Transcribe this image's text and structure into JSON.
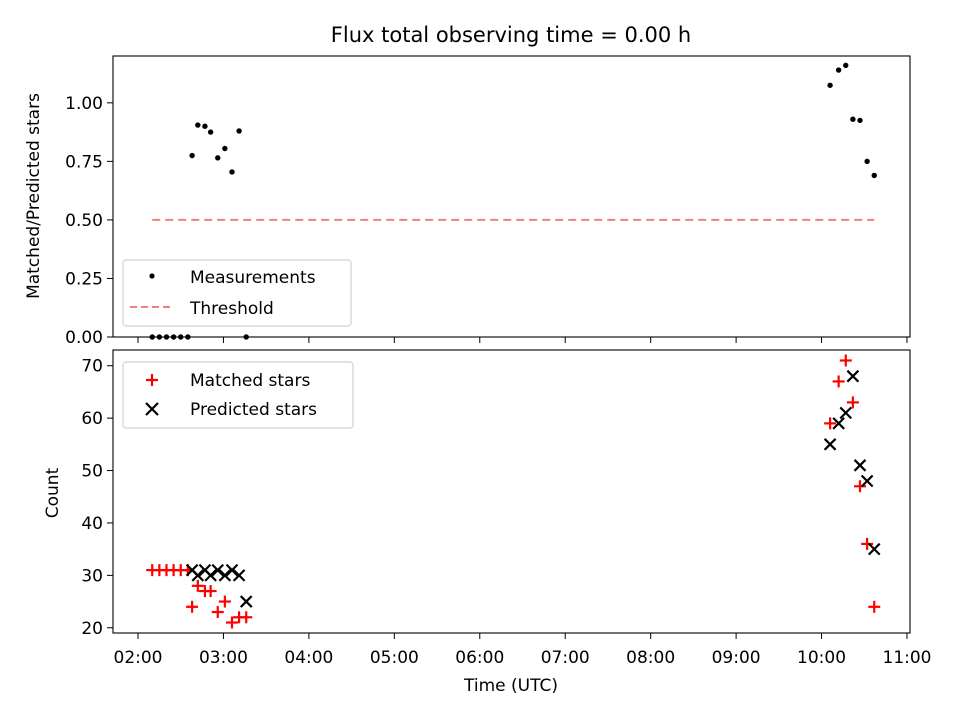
{
  "chart_data": [
    {
      "type": "scatter",
      "title": "Flux total observing time = 0.00 h",
      "ylabel": "Matched/Predicted stars",
      "xlim": [
        "02:00",
        "11:00"
      ],
      "ylim": [
        0,
        1.2
      ],
      "yticks": [
        "0.00",
        "0.25",
        "0.50",
        "0.75",
        "1.00"
      ],
      "legend_position": "lower-left",
      "series": [
        {
          "name": "Measurements",
          "kind": "dot",
          "color": "#000000",
          "points": [
            [
              "02:10",
              0.0
            ],
            [
              "02:15",
              0.0
            ],
            [
              "02:20",
              0.0
            ],
            [
              "02:25",
              0.0
            ],
            [
              "02:30",
              0.0
            ],
            [
              "02:35",
              0.0
            ],
            [
              "02:38",
              0.775
            ],
            [
              "02:42",
              0.905
            ],
            [
              "02:47",
              0.9
            ],
            [
              "02:51",
              0.875
            ],
            [
              "02:56",
              0.765
            ],
            [
              "03:01",
              0.805
            ],
            [
              "03:06",
              0.705
            ],
            [
              "03:11",
              0.88
            ],
            [
              "03:16",
              0.0
            ],
            [
              "10:06",
              1.075
            ],
            [
              "10:12",
              1.14
            ],
            [
              "10:17",
              1.16
            ],
            [
              "10:22",
              0.93
            ],
            [
              "10:27",
              0.925
            ],
            [
              "10:32",
              0.75
            ],
            [
              "10:37",
              0.69
            ]
          ]
        },
        {
          "name": "Threshold",
          "kind": "dashed-line",
          "color": "#f08080",
          "points": [
            [
              "02:10",
              0.5
            ],
            [
              "10:37",
              0.5
            ]
          ]
        }
      ]
    },
    {
      "type": "scatter",
      "xlabel": "Time (UTC)",
      "ylabel": "Count",
      "xlim": [
        "02:00",
        "11:00"
      ],
      "ylim": [
        19,
        73
      ],
      "xticks": [
        "02:00",
        "03:00",
        "04:00",
        "05:00",
        "06:00",
        "07:00",
        "08:00",
        "09:00",
        "10:00",
        "11:00"
      ],
      "yticks": [
        "20",
        "30",
        "40",
        "50",
        "60",
        "70"
      ],
      "legend_position": "upper-left",
      "series": [
        {
          "name": "Matched stars",
          "kind": "plus",
          "color": "#ff0000",
          "points": [
            [
              "02:10",
              31
            ],
            [
              "02:15",
              31
            ],
            [
              "02:20",
              31
            ],
            [
              "02:25",
              31
            ],
            [
              "02:30",
              31
            ],
            [
              "02:35",
              31
            ],
            [
              "02:38",
              24
            ],
            [
              "02:42",
              28
            ],
            [
              "02:47",
              27
            ],
            [
              "02:51",
              27
            ],
            [
              "02:56",
              23
            ],
            [
              "03:01",
              25
            ],
            [
              "03:06",
              21
            ],
            [
              "03:11",
              22
            ],
            [
              "03:16",
              22
            ],
            [
              "10:06",
              59
            ],
            [
              "10:12",
              67
            ],
            [
              "10:17",
              71
            ],
            [
              "10:22",
              63
            ],
            [
              "10:27",
              47
            ],
            [
              "10:32",
              36
            ],
            [
              "10:37",
              24
            ]
          ]
        },
        {
          "name": "Predicted stars",
          "kind": "x",
          "color": "#000000",
          "points": [
            [
              "02:38",
              31
            ],
            [
              "02:42",
              30
            ],
            [
              "02:47",
              31
            ],
            [
              "02:51",
              30
            ],
            [
              "02:56",
              31
            ],
            [
              "03:01",
              30
            ],
            [
              "03:06",
              31
            ],
            [
              "03:11",
              30
            ],
            [
              "03:16",
              25
            ],
            [
              "10:06",
              55
            ],
            [
              "10:12",
              59
            ],
            [
              "10:17",
              61
            ],
            [
              "10:22",
              68
            ],
            [
              "10:27",
              51
            ],
            [
              "10:32",
              48
            ],
            [
              "10:37",
              35
            ]
          ]
        }
      ]
    }
  ]
}
